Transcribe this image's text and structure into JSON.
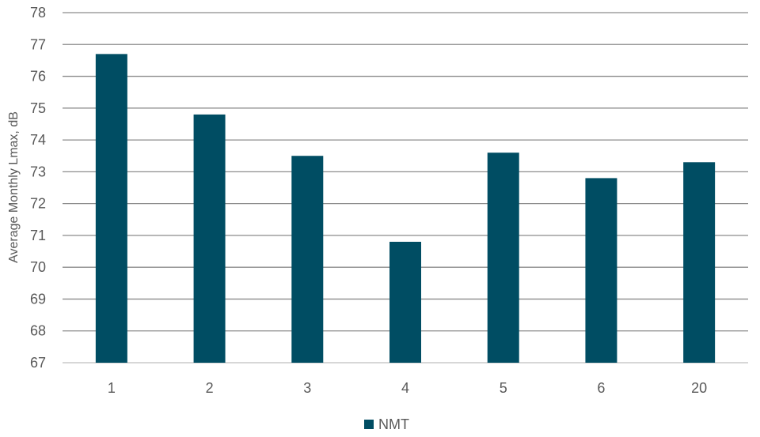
{
  "chart_data": {
    "type": "bar",
    "title": "",
    "xlabel": "",
    "ylabel": "Average Monthly Lmax, dB",
    "categories": [
      "1",
      "2",
      "3",
      "4",
      "5",
      "6",
      "20"
    ],
    "series": [
      {
        "name": "NMT",
        "values": [
          76.7,
          74.8,
          73.5,
          70.8,
          73.6,
          72.8,
          73.3
        ],
        "color": "#004d63"
      }
    ],
    "ylim": [
      67,
      78
    ],
    "yticks": [
      "67",
      "68",
      "69",
      "70",
      "71",
      "72",
      "73",
      "74",
      "75",
      "76",
      "77",
      "78"
    ],
    "grid": true,
    "legend_position": "bottom"
  }
}
